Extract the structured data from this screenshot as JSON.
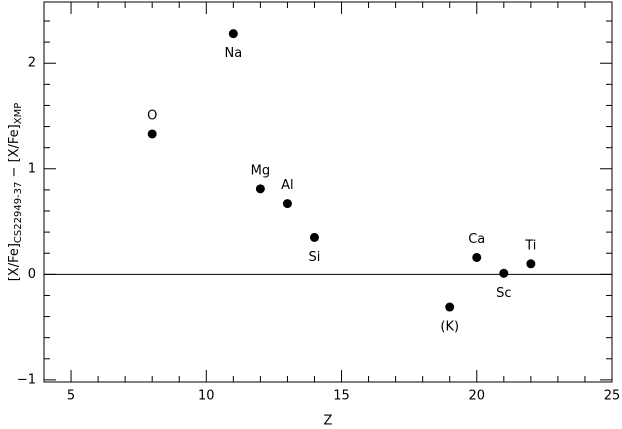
{
  "chart_data": {
    "type": "scatter",
    "xlabel": "Z",
    "ylabel": [
      {
        "text": "[X/Fe]",
        "sub": false
      },
      {
        "text": "CS22949-37",
        "sub": true
      },
      {
        "text": " − [X/Fe]",
        "sub": false
      },
      {
        "text": "XMP",
        "sub": true
      }
    ],
    "x": [
      8,
      11,
      12,
      13,
      14,
      19,
      20,
      21,
      22
    ],
    "values": [
      1.33,
      2.28,
      0.81,
      0.67,
      0.35,
      -0.31,
      0.16,
      0.01,
      0.1
    ],
    "point_labels": [
      "O",
      "Na",
      "Mg",
      "Al",
      "Si",
      "(K)",
      "Ca",
      "Sc",
      "Ti"
    ],
    "color": "#000000",
    "xlim": [
      4,
      25
    ],
    "ylim": [
      -1.02,
      2.58
    ],
    "xticks": [
      5,
      10,
      15,
      20,
      25
    ],
    "yticks": [
      {
        "value": -1,
        "label": "−1"
      },
      0,
      1,
      2
    ],
    "xticks_minor": [
      4,
      6,
      7,
      8,
      9,
      11,
      12,
      13,
      14,
      16,
      17,
      18,
      19,
      21,
      22,
      23,
      24
    ],
    "yticks_minor": [
      -0.8,
      -0.6,
      -0.4,
      -0.2,
      0.2,
      0.4,
      0.6,
      0.8,
      1.2,
      1.4,
      1.6,
      1.8,
      2.2,
      2.4
    ],
    "hline": 0
  }
}
